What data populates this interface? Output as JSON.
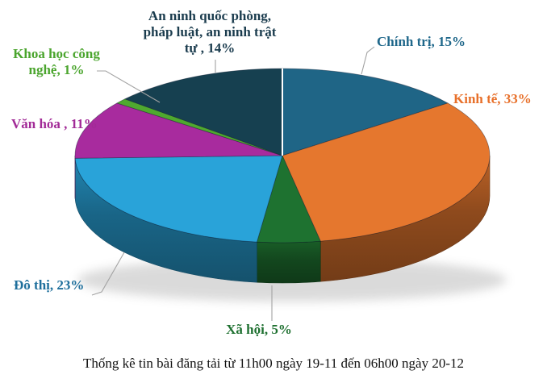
{
  "page": {
    "background": "#FFFFFF"
  },
  "caption": {
    "text": "Thống kê tin bài đăng tải từ 11h00 ngày 19-11 đến 06h00 ngày 20-12"
  },
  "labels": {
    "an_ninh": {
      "lines": [
        "An ninh quốc phòng,",
        "pháp luật, an ninh trật",
        "tự , 14%"
      ],
      "color": "#1B3C4E"
    },
    "chinh_tri": {
      "text": "Chính trị, 15%",
      "color": "#20688B"
    },
    "kinh_te": {
      "text": "Kinh tế, 33%",
      "color": "#E8702A"
    },
    "khoa_hoc": {
      "lines": [
        "Khoa học công",
        "nghệ, 1%"
      ],
      "color": "#4BA52E"
    },
    "van_hoa": {
      "text": "Văn hóa , 11%",
      "color": "#A22B97"
    },
    "do_thi": {
      "text": "Đô thị, 23%",
      "color": "#1E6F9C"
    },
    "xa_hoi": {
      "text": "Xã hội, 5%",
      "color": "#1E7030"
    }
  },
  "chart_data": {
    "type": "pie",
    "style": "3d",
    "title": "Thống kê tin bài đăng tải từ 11h00 ngày 19-11 đến 06h00 ngày 20-12",
    "legend": "none",
    "start_angle_deg": 0,
    "direction": "clockwise",
    "categories": [
      "Chính trị",
      "Kinh tế",
      "Xã hội",
      "Đô thị",
      "Văn hóa",
      "Khoa học công nghệ",
      "An ninh quốc phòng, pháp luật, an ninh trật tự"
    ],
    "values": [
      15,
      33,
      5,
      23,
      11,
      1,
      14
    ],
    "unit": "%",
    "colors": [
      "#1F6586",
      "#E5772E",
      "#1E7230",
      "#29A3D9",
      "#A82B9E",
      "#4FA92F",
      "#164050"
    ]
  }
}
